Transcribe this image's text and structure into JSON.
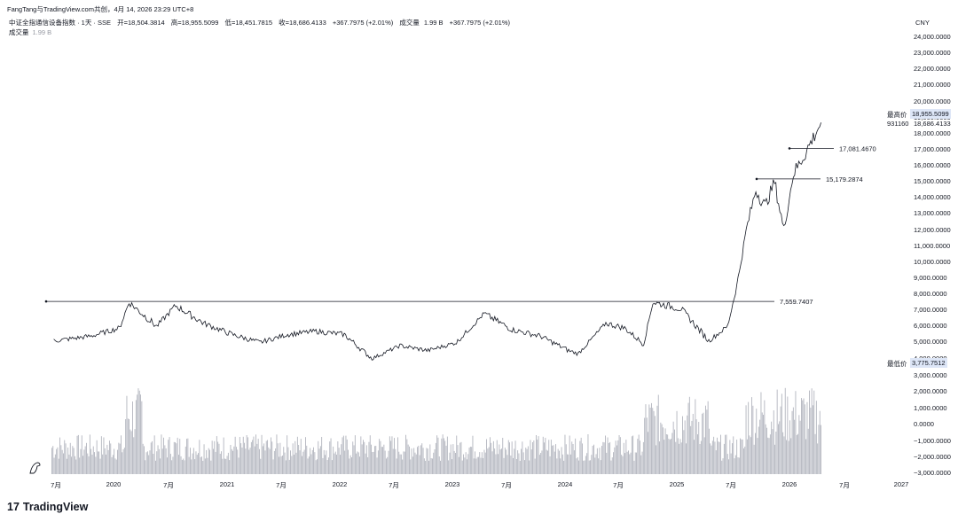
{
  "header": {
    "top_line": "FangTang与TradingView.com共创，4月 14, 2026 23:29 UTC+8",
    "symbol": "中证全指通信设备指数 · 1天 · SSE",
    "open": "开=18,504.3814",
    "high": "高=18,955.5099",
    "low": "低=18,451.7815",
    "close": "收=18,686.4133",
    "change": "+367.7975 (+2.01%)",
    "volume_label": "成交量",
    "volume_value": "1.99 B",
    "change2": "+367.7975 (+2.01%)",
    "volume_row_label": "成交量",
    "volume_row_value": "1.99 B"
  },
  "currency": "CNY",
  "price_tags": {
    "high_label": "最高价",
    "high_value": "18,955.5099",
    "last_value": "18,686.4133",
    "countdown": "931160",
    "low_label": "最低价",
    "low_value": "3,775.7512"
  },
  "brand": "TradingView",
  "chart_data": {
    "type": "line",
    "title": "中证全指通信设备指数 · 1天 · SSE",
    "ylabel": "",
    "xlabel": "",
    "x_ticks": [
      "7月",
      "2020",
      "7月",
      "2021",
      "7月",
      "2022",
      "7月",
      "2023",
      "7月",
      "2024",
      "7月",
      "2025",
      "7月",
      "2026",
      "7月",
      "2027"
    ],
    "y_ticks": [
      "24,000.0000",
      "23,000.0000",
      "22,000.0000",
      "21,000.0000",
      "20,000.0000",
      "19,000.0000",
      "18,000.0000",
      "17,000.0000",
      "16,000.0000",
      "15,000.0000",
      "14,000.0000",
      "13,000.0000",
      "12,000.0000",
      "11,000.0000",
      "10,000.0000",
      "9,000.0000",
      "8,000.0000",
      "7,000.0000",
      "6,000.0000",
      "5,000.0000",
      "4,000.0000"
    ],
    "volume_ticks": [
      "3,000.0000",
      "2,000.0000",
      "1,000.0000",
      "0.0000",
      "−1,000.0000",
      "−2,000.0000",
      "−3,000.0000"
    ],
    "ylim": [
      4000,
      24000
    ],
    "series": [
      {
        "x": [
          "2019-06",
          "2019-10",
          "2020-01",
          "2020-02",
          "2020-05",
          "2020-07",
          "2020-10",
          "2021-01",
          "2021-04",
          "2021-07",
          "2021-10",
          "2022-01",
          "2022-04",
          "2022-07",
          "2022-10",
          "2023-01",
          "2023-04",
          "2023-07",
          "2023-10",
          "2024-01",
          "2024-02",
          "2024-05",
          "2024-07",
          "2024-09",
          "2024-10",
          "2025-01",
          "2025-04",
          "2025-06",
          "2025-07",
          "2025-08",
          "2025-09",
          "2025-10",
          "2025-11",
          "2025-12",
          "2026-01",
          "2026-02",
          "2026-04"
        ],
        "values": [
          5100,
          5400,
          5900,
          7500,
          6000,
          7300,
          6200,
          5500,
          5000,
          5500,
          5700,
          5500,
          4000,
          4800,
          4500,
          5000,
          6800,
          5800,
          5400,
          4500,
          4300,
          6200,
          5900,
          4900,
          7500,
          7100,
          5100,
          6000,
          8500,
          12000,
          14500,
          13500,
          15000,
          12000,
          15500,
          16500,
          18686
        ]
      }
    ],
    "horizontal_lines": [
      {
        "label": "17,081.4670",
        "value": 17081.467
      },
      {
        "label": "15,179.2874",
        "value": 15179.2874
      },
      {
        "label": "7,559.7407",
        "value": 7559.7407
      }
    ],
    "grid": false,
    "legend": "none"
  }
}
